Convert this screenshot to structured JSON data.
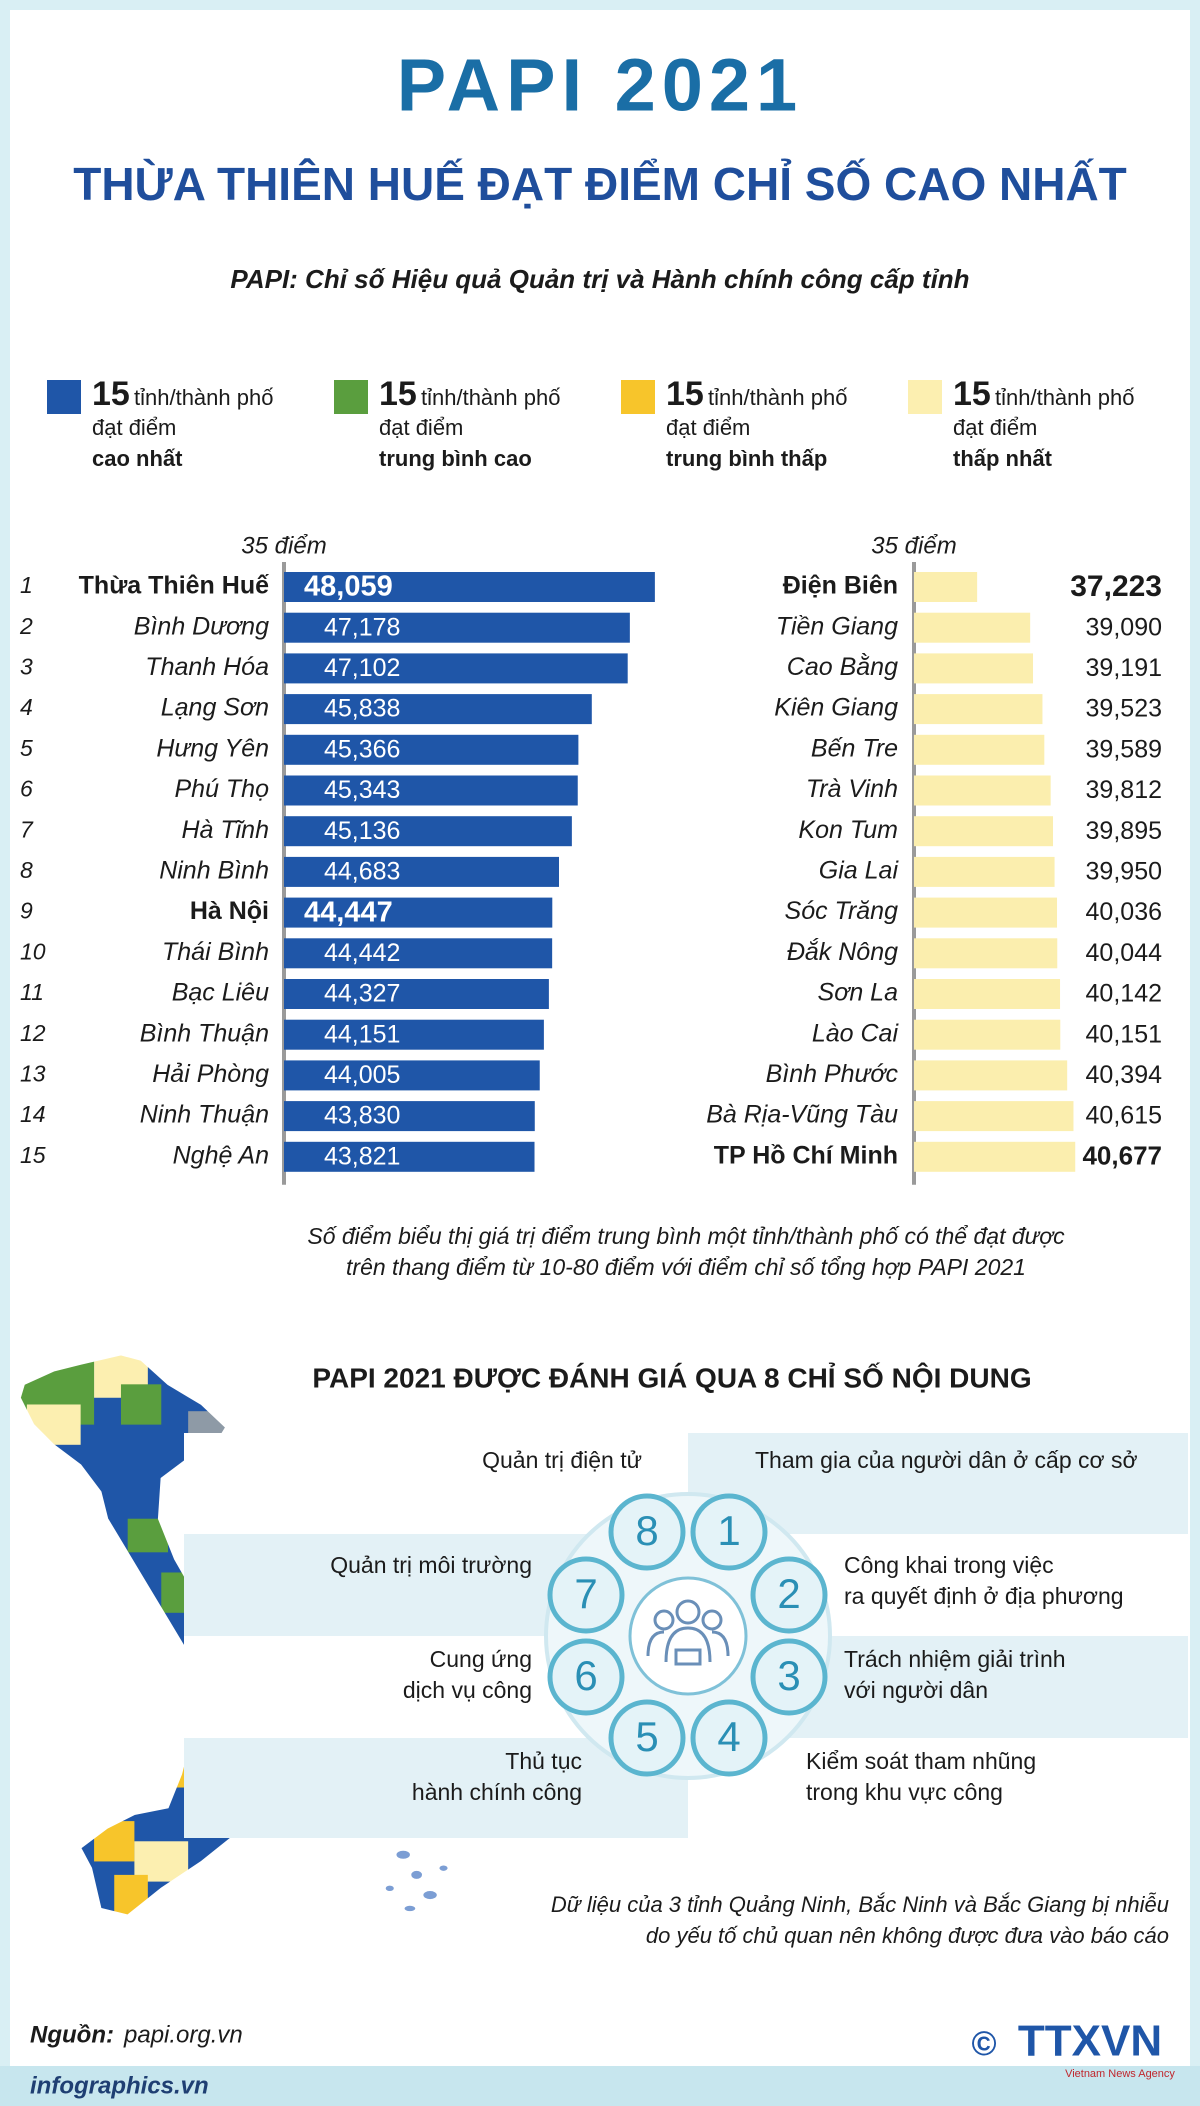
{
  "header": {
    "title": "PAPI 2021",
    "headline": "THỪA THIÊN HUẾ ĐẠT ĐIỂM CHỈ SỐ CAO NHẤT",
    "subtitle": "PAPI: Chỉ số Hiệu quả Quản trị và Hành chính công cấp tỉnh"
  },
  "legend": [
    {
      "count": 15,
      "unit": "tỉnh/thành phố",
      "line2": "đạt điểm",
      "level": "cao nhất",
      "color": "#1f56a8"
    },
    {
      "count": 15,
      "unit": "tỉnh/thành phố",
      "line2": "đạt điểm",
      "level": "trung bình cao",
      "color": "#5a9e3e"
    },
    {
      "count": 15,
      "unit": "tỉnh/thành phố",
      "line2": "đạt điểm",
      "level": "trung bình thấp",
      "color": "#f7c52b"
    },
    {
      "count": 15,
      "unit": "tỉnh/thành phố",
      "line2": "đạt điểm",
      "level": "thấp nhất",
      "color": "#fcefb0"
    }
  ],
  "chart_data": [
    {
      "type": "bar",
      "orientation": "horizontal",
      "ranks": [
        1,
        2,
        3,
        4,
        5,
        6,
        7,
        8,
        9,
        10,
        11,
        12,
        13,
        14,
        15
      ],
      "categories": [
        "Thừa Thiên Huế",
        "Bình Dương",
        "Thanh Hóa",
        "Lạng Sơn",
        "Hưng Yên",
        "Phú Thọ",
        "Hà Tĩnh",
        "Ninh Bình",
        "Hà Nội",
        "Thái Bình",
        "Bạc Liêu",
        "Bình Thuận",
        "Hải Phòng",
        "Ninh Thuận",
        "Nghệ An"
      ],
      "values": [
        48.059,
        47.178,
        47.102,
        45.838,
        45.366,
        45.343,
        45.136,
        44.683,
        44.447,
        44.442,
        44.327,
        44.151,
        44.005,
        43.83,
        43.821
      ],
      "value_labels": [
        "48,059",
        "47,178",
        "47,102",
        "45,838",
        "45,366",
        "45,343",
        "45,136",
        "44,683",
        "44,447",
        "44,442",
        "44,327",
        "44,151",
        "44,005",
        "43,830",
        "43,821"
      ],
      "value_label_position": "inside",
      "color": "#1f56a8",
      "xlim": [
        35,
        49
      ],
      "xticks": [
        {
          "value": 35,
          "label": "35 điểm"
        }
      ],
      "emphasis": [
        0,
        8
      ]
    },
    {
      "type": "bar",
      "orientation": "horizontal",
      "categories": [
        "Điện Biên",
        "Tiền Giang",
        "Cao Bằng",
        "Kiên Giang",
        "Bến Tre",
        "Trà Vinh",
        "Kon Tum",
        "Gia Lai",
        "Sóc Trăng",
        "Đắk Nông",
        "Sơn La",
        "Lào Cai",
        "Bình Phước",
        "Bà Rịa-Vũng Tàu",
        "TP Hồ Chí Minh"
      ],
      "values": [
        37.223,
        39.09,
        39.191,
        39.523,
        39.589,
        39.812,
        39.895,
        39.95,
        40.036,
        40.044,
        40.142,
        40.151,
        40.394,
        40.615,
        40.677
      ],
      "value_labels": [
        "37,223",
        "39,090",
        "39,191",
        "39,523",
        "39,589",
        "39,812",
        "39,895",
        "39,950",
        "40,036",
        "40,044",
        "40,142",
        "40,151",
        "40,394",
        "40,615",
        "40,677"
      ],
      "value_label_position": "outside",
      "color": "#fbeeae",
      "xlim": [
        35,
        41
      ],
      "xticks": [
        {
          "value": 35,
          "label": "35 điểm"
        }
      ],
      "emphasis": [
        0,
        14
      ]
    }
  ],
  "note": [
    "Số điểm biểu thị giá trị điểm trung bình một tỉnh/thành phố có thể đạt được",
    "trên thang điểm từ 10-80 điểm với điểm chỉ số tổng hợp PAPI 2021"
  ],
  "indicators": {
    "title": "PAPI 2021 ĐƯỢC ĐÁNH GIÁ QUA 8 CHỈ SỐ NỘI DUNG",
    "items": [
      {
        "number": 1,
        "lines": [
          "Tham gia của người dân ở cấp cơ sở"
        ]
      },
      {
        "number": 2,
        "lines": [
          "Công khai trong việc",
          "ra quyết định ở địa phương"
        ]
      },
      {
        "number": 3,
        "lines": [
          "Trách nhiệm giải trình",
          "với người dân"
        ]
      },
      {
        "number": 4,
        "lines": [
          "Kiểm soát tham nhũng",
          "trong khu vực công"
        ]
      },
      {
        "number": 5,
        "lines": [
          "Thủ tục",
          "hành chính công"
        ]
      },
      {
        "number": 6,
        "lines": [
          "Cung ứng",
          "dịch vụ công"
        ]
      },
      {
        "number": 7,
        "lines": [
          "Quản trị môi trường"
        ]
      },
      {
        "number": 8,
        "lines": [
          "Quản trị điện tử"
        ]
      }
    ]
  },
  "footnote": [
    "Dữ liệu của 3 tỉnh Quảng Ninh, Bắc Ninh và Bắc Giang bị nhiễu",
    "do yếu tố chủ quan nên không được đưa vào báo cáo"
  ],
  "footer": {
    "source_label": "Nguồn:",
    "source": "papi.org.vn",
    "site": "infographics.vn",
    "copyright": "©",
    "agency": "TTXVN",
    "agency_en": "Vietnam News Agency"
  }
}
